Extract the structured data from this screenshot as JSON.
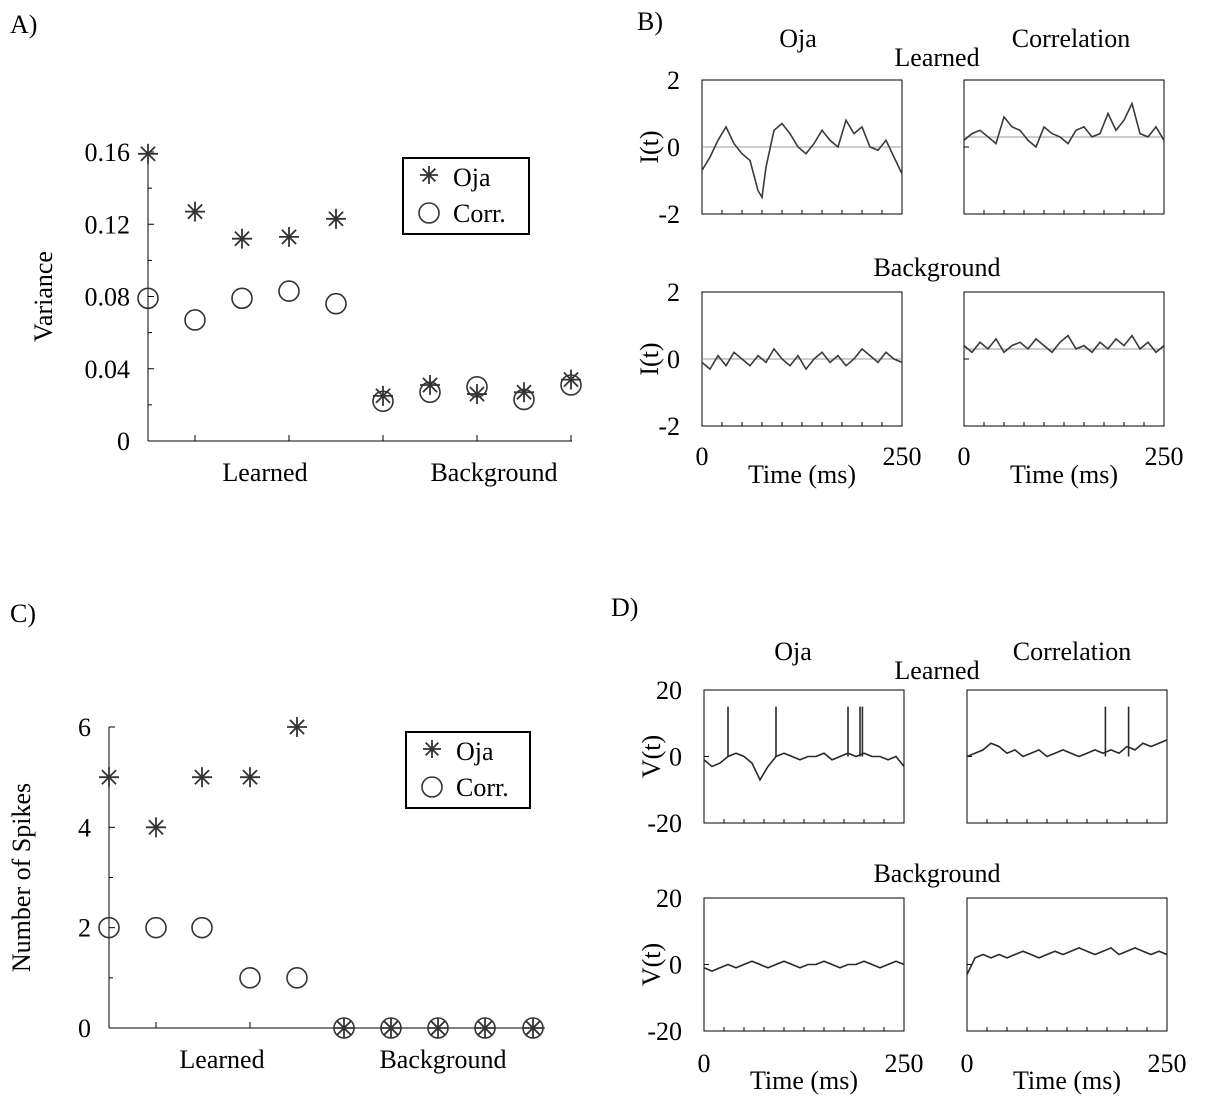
{
  "panels": {
    "A": {
      "label": "A)"
    },
    "B": {
      "label": "B)",
      "left_title": "Oja",
      "right_title": "Correlation",
      "row1_title": "Learned",
      "row2_title": "Background"
    },
    "C": {
      "label": "C)"
    },
    "D": {
      "label": "D)",
      "left_title": "Oja",
      "right_title": "Correlation",
      "row1_title": "Learned",
      "row2_title": "Background"
    }
  },
  "chart_data": [
    {
      "id": "A",
      "type": "scatter",
      "title": "",
      "xlabel": "",
      "ylabel": "Variance",
      "ylim": [
        0,
        0.16
      ],
      "yticks": [
        0,
        0.04,
        0.08,
        0.12,
        0.16
      ],
      "ytick_labels": [
        "0",
        "0.04",
        "0.08",
        "0.12",
        "0.16"
      ],
      "x": [
        1,
        2,
        3,
        4,
        5,
        6,
        7,
        8,
        9,
        10
      ],
      "xlim": [
        1,
        10
      ],
      "group_labels": [
        "Learned",
        "Background"
      ],
      "legend": {
        "placement": "top-right",
        "entries": [
          "Oja",
          "Corr."
        ]
      },
      "series": [
        {
          "name": "Oja",
          "marker": "asterisk",
          "values": [
            0.159,
            0.127,
            0.112,
            0.113,
            0.123,
            0.025,
            0.031,
            0.026,
            0.027,
            0.034
          ]
        },
        {
          "name": "Corr.",
          "marker": "circle",
          "values": [
            0.079,
            0.067,
            0.079,
            0.083,
            0.076,
            0.022,
            0.027,
            0.03,
            0.023,
            0.031
          ]
        }
      ]
    },
    {
      "id": "B",
      "type": "line",
      "title": "",
      "xlabel": "Time (ms)",
      "ylabel": "I(t)",
      "xlim": [
        0,
        250
      ],
      "xticks": [
        0,
        250
      ],
      "xtick_labels": [
        "0",
        "250"
      ],
      "ylim": [
        -2,
        2
      ],
      "yticks": [
        -2,
        0,
        2
      ],
      "ytick_labels": [
        "-2",
        "0",
        "2"
      ],
      "color": "#3a3a3a",
      "subplots": [
        {
          "row": "Learned",
          "col": "Oja",
          "baseline": 0,
          "t": [
            0,
            10,
            20,
            30,
            40,
            50,
            60,
            70,
            75,
            80,
            90,
            100,
            110,
            120,
            130,
            140,
            150,
            160,
            170,
            180,
            190,
            200,
            210,
            220,
            230,
            240,
            250
          ],
          "values": [
            -0.7,
            -0.3,
            0.2,
            0.6,
            0.1,
            -0.2,
            -0.4,
            -1.3,
            -1.5,
            -0.6,
            0.5,
            0.7,
            0.4,
            0.0,
            -0.2,
            0.1,
            0.5,
            0.2,
            0.0,
            0.8,
            0.4,
            0.6,
            0.0,
            -0.1,
            0.2,
            -0.3,
            -0.8
          ]
        },
        {
          "row": "Learned",
          "col": "Correlation",
          "baseline": 0.3,
          "t": [
            0,
            10,
            20,
            30,
            40,
            50,
            60,
            70,
            80,
            90,
            100,
            110,
            120,
            130,
            140,
            150,
            160,
            170,
            180,
            190,
            200,
            210,
            220,
            230,
            240,
            250
          ],
          "values": [
            0.2,
            0.4,
            0.5,
            0.3,
            0.1,
            0.9,
            0.6,
            0.5,
            0.2,
            0.0,
            0.6,
            0.4,
            0.3,
            0.1,
            0.5,
            0.6,
            0.3,
            0.4,
            1.0,
            0.5,
            0.8,
            1.3,
            0.4,
            0.3,
            0.6,
            0.2
          ]
        },
        {
          "row": "Background",
          "col": "Oja",
          "baseline": 0,
          "t": [
            0,
            10,
            20,
            30,
            40,
            50,
            60,
            70,
            80,
            90,
            100,
            110,
            120,
            130,
            140,
            150,
            160,
            170,
            180,
            190,
            200,
            210,
            220,
            230,
            240,
            250
          ],
          "values": [
            -0.1,
            -0.3,
            0.1,
            -0.2,
            0.2,
            0.0,
            -0.2,
            0.1,
            -0.1,
            0.3,
            0.0,
            -0.2,
            0.1,
            -0.3,
            0.0,
            0.2,
            -0.1,
            0.1,
            -0.2,
            0.0,
            0.3,
            0.1,
            -0.1,
            0.2,
            0.0,
            -0.1
          ]
        },
        {
          "row": "Background",
          "col": "Correlation",
          "baseline": 0.3,
          "t": [
            0,
            10,
            20,
            30,
            40,
            50,
            60,
            70,
            80,
            90,
            100,
            110,
            120,
            130,
            140,
            150,
            160,
            170,
            180,
            190,
            200,
            210,
            220,
            230,
            240,
            250
          ],
          "values": [
            0.4,
            0.2,
            0.5,
            0.3,
            0.6,
            0.2,
            0.4,
            0.5,
            0.3,
            0.6,
            0.4,
            0.2,
            0.5,
            0.7,
            0.3,
            0.4,
            0.2,
            0.5,
            0.3,
            0.6,
            0.4,
            0.7,
            0.3,
            0.5,
            0.2,
            0.4
          ]
        }
      ]
    },
    {
      "id": "C",
      "type": "scatter",
      "title": "",
      "xlabel": "",
      "ylabel": "Number of Spikes",
      "ylim": [
        0,
        6
      ],
      "yticks": [
        0,
        2,
        4,
        6
      ],
      "ytick_labels": [
        "0",
        "2",
        "4",
        "6"
      ],
      "x": [
        1,
        2,
        3,
        4,
        5,
        6,
        7,
        8,
        9,
        10
      ],
      "xlim": [
        1,
        10
      ],
      "group_labels": [
        "Learned",
        "Background"
      ],
      "legend": {
        "placement": "top-right",
        "entries": [
          "Oja",
          "Corr."
        ]
      },
      "series": [
        {
          "name": "Oja",
          "marker": "asterisk",
          "values": [
            5,
            4,
            5,
            5,
            6,
            0,
            0,
            0,
            0,
            0
          ]
        },
        {
          "name": "Corr.",
          "marker": "circle",
          "values": [
            2,
            2,
            2,
            1,
            1,
            0,
            0,
            0,
            0,
            0
          ]
        }
      ]
    },
    {
      "id": "D",
      "type": "line",
      "title": "",
      "xlabel": "Time (ms)",
      "ylabel": "V(t)",
      "xlim": [
        0,
        250
      ],
      "xticks": [
        0,
        250
      ],
      "xtick_labels": [
        "0",
        "250"
      ],
      "ylim": [
        -20,
        20
      ],
      "yticks": [
        -20,
        0,
        20
      ],
      "ytick_labels": [
        "-20",
        "0",
        "20"
      ],
      "color": "#2a2a2a",
      "subplots": [
        {
          "row": "Learned",
          "col": "Oja",
          "t": [
            0,
            10,
            20,
            30,
            40,
            50,
            60,
            70,
            80,
            90,
            100,
            110,
            120,
            130,
            140,
            150,
            160,
            170,
            180,
            190,
            200,
            210,
            220,
            230,
            240,
            250
          ],
          "values": [
            -1,
            -3,
            -2,
            0,
            1,
            0,
            -2,
            -7,
            -3,
            0,
            1,
            0,
            -1,
            0,
            0,
            1,
            -1,
            0,
            1,
            0,
            1,
            0,
            0,
            -1,
            0,
            -3
          ],
          "spikes": [
            30,
            90,
            180,
            195,
            198
          ]
        },
        {
          "row": "Learned",
          "col": "Correlation",
          "t": [
            0,
            10,
            20,
            30,
            40,
            50,
            60,
            70,
            80,
            90,
            100,
            110,
            120,
            130,
            140,
            150,
            160,
            170,
            180,
            190,
            200,
            210,
            220,
            230,
            240,
            250
          ],
          "values": [
            0,
            1,
            2,
            4,
            3,
            1,
            2,
            0,
            1,
            2,
            0,
            1,
            2,
            1,
            0,
            1,
            2,
            1,
            2,
            1,
            3,
            2,
            4,
            3,
            4,
            5
          ],
          "spikes": [
            173,
            202
          ]
        },
        {
          "row": "Background",
          "col": "Oja",
          "t": [
            0,
            10,
            20,
            30,
            40,
            50,
            60,
            70,
            80,
            90,
            100,
            110,
            120,
            130,
            140,
            150,
            160,
            170,
            180,
            190,
            200,
            210,
            220,
            230,
            240,
            250
          ],
          "values": [
            -1,
            -2,
            -1,
            0,
            -1,
            0,
            1,
            0,
            -1,
            0,
            1,
            0,
            -1,
            0,
            0,
            1,
            0,
            -1,
            0,
            0,
            1,
            0,
            -1,
            0,
            1,
            0
          ],
          "spikes": []
        },
        {
          "row": "Background",
          "col": "Correlation",
          "t": [
            0,
            10,
            20,
            30,
            40,
            50,
            60,
            70,
            80,
            90,
            100,
            110,
            120,
            130,
            140,
            150,
            160,
            170,
            180,
            190,
            200,
            210,
            220,
            230,
            240,
            250
          ],
          "values": [
            -3,
            2,
            3,
            2,
            3,
            2,
            3,
            4,
            3,
            2,
            3,
            4,
            3,
            4,
            5,
            4,
            3,
            4,
            5,
            3,
            4,
            5,
            4,
            3,
            4,
            3
          ],
          "spikes": []
        }
      ]
    }
  ]
}
